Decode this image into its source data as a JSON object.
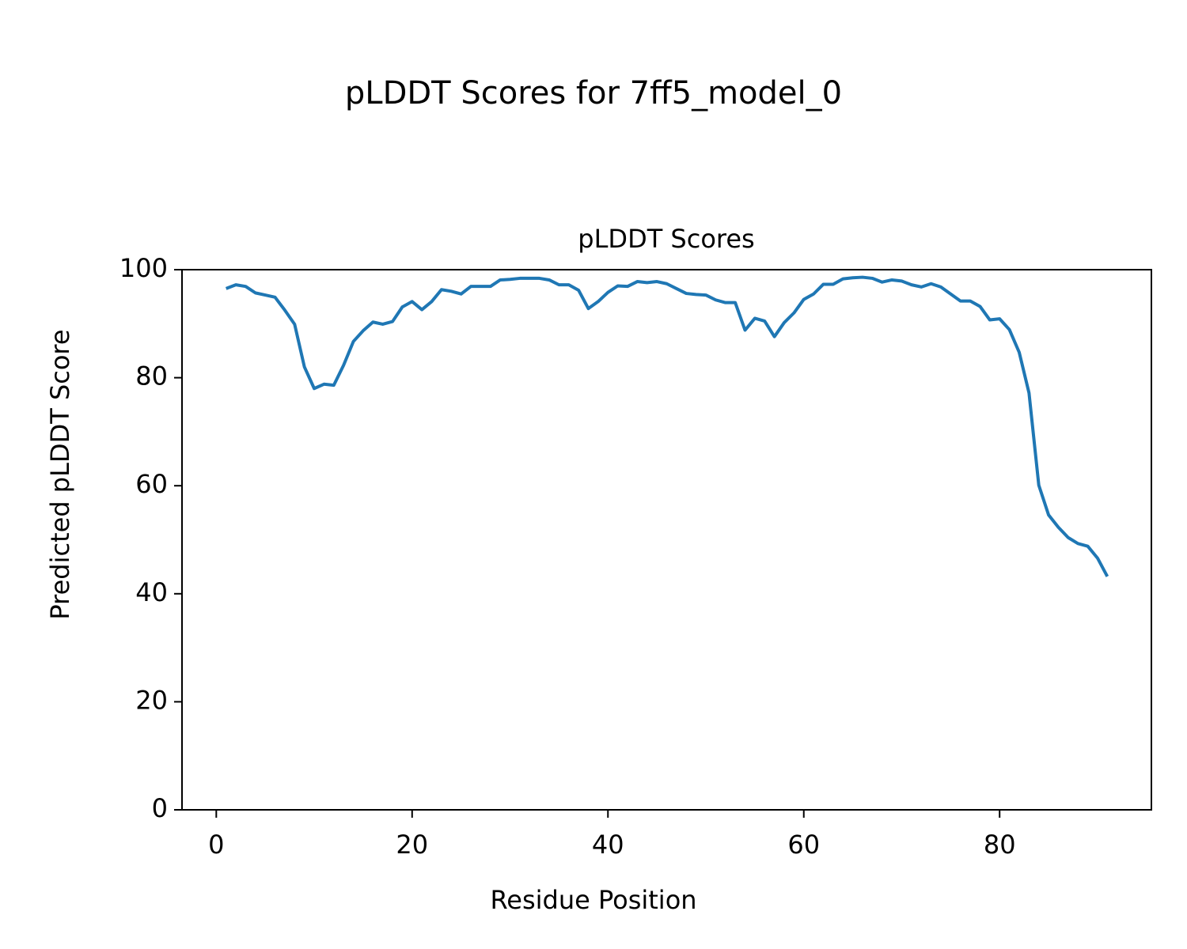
{
  "chart_data": {
    "type": "line",
    "suptitle": "pLDDT Scores for 7ff5_model_0",
    "title": "pLDDT Scores",
    "xlabel": "Residue Position",
    "ylabel": "Predicted pLDDT Score",
    "x": [
      1,
      2,
      3,
      4,
      5,
      6,
      7,
      8,
      9,
      10,
      11,
      12,
      13,
      14,
      15,
      16,
      17,
      18,
      19,
      20,
      21,
      22,
      23,
      24,
      25,
      26,
      27,
      28,
      29,
      30,
      31,
      32,
      33,
      34,
      35,
      36,
      37,
      38,
      39,
      40,
      41,
      42,
      43,
      44,
      45,
      46,
      47,
      48,
      49,
      50,
      51,
      52,
      53,
      54,
      55,
      56,
      57,
      58,
      59,
      60,
      61,
      62,
      63,
      64,
      65,
      66,
      67,
      68,
      69,
      70,
      71,
      72,
      73,
      74,
      75,
      76,
      77,
      78,
      79,
      80,
      81,
      82,
      83,
      84,
      85,
      86,
      87,
      88,
      89,
      90,
      91
    ],
    "series": [
      {
        "name": "pLDDT",
        "color": "#1f77b4",
        "values": [
          96.5,
          97.2,
          96.9,
          95.7,
          95.3,
          94.9,
          92.5,
          89.9,
          82,
          78,
          78.8,
          78.6,
          82.3,
          86.7,
          88.7,
          90.3,
          89.9,
          90.4,
          93.1,
          94.1,
          92.6,
          94.1,
          96.3,
          96,
          95.5,
          96.9,
          96.9,
          96.9,
          98.1,
          98.2,
          98.4,
          98.4,
          98.4,
          98.1,
          97.2,
          97.2,
          96.2,
          92.8,
          94.1,
          95.8,
          97,
          96.9,
          97.8,
          97.6,
          97.8,
          97.4,
          96.5,
          95.6,
          95.4,
          95.3,
          94.4,
          93.9,
          93.9,
          88.8,
          91,
          90.5,
          87.6,
          90.2,
          92,
          94.5,
          95.5,
          97.3,
          97.3,
          98.3,
          98.5,
          98.6,
          98.4,
          97.7,
          98.1,
          97.9,
          97.2,
          96.8,
          97.4,
          96.8,
          95.5,
          94.2,
          94.2,
          93.2,
          90.7,
          90.9,
          88.9,
          84.7,
          77.2,
          60.1,
          54.6,
          52.3,
          50.4,
          49.3,
          48.8,
          46.6,
          43.2
        ]
      }
    ],
    "xlim": [
      -3.5,
      95.5
    ],
    "xticks": [
      0,
      20,
      40,
      60,
      80
    ],
    "ylim": [
      0,
      100
    ],
    "yticks": [
      0,
      20,
      40,
      60,
      80,
      100
    ],
    "grid": false
  }
}
